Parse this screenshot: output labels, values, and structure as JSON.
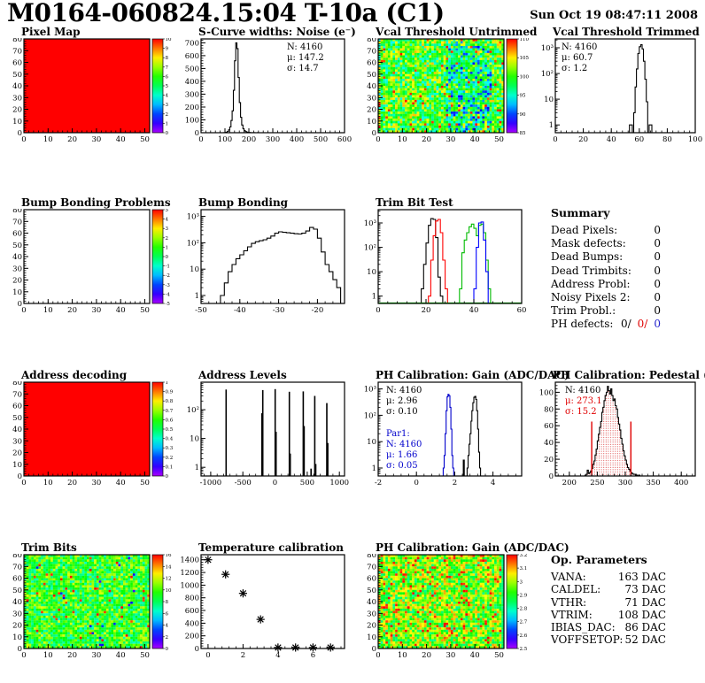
{
  "header": {
    "title": "M0164-060824.15:04 T-10a (C1)",
    "datetime": "Sun Oct 19 08:47:11 2008"
  },
  "summary": {
    "title": "Summary",
    "rows": [
      {
        "label": "Dead Pixels:",
        "value": "0"
      },
      {
        "label": "Mask defects:",
        "value": "0"
      },
      {
        "label": "Dead Bumps:",
        "value": "0"
      },
      {
        "label": "Dead Trimbits:",
        "value": "0"
      },
      {
        "label": "Address Probl:",
        "value": "0"
      },
      {
        "label": "Noisy Pixels 2:",
        "value": "0"
      },
      {
        "label": "Trim Probl.:",
        "value": "0"
      }
    ],
    "ph_row": {
      "label": "PH defects:",
      "parts": [
        {
          "text": "0/",
          "color": "#000000"
        },
        {
          "text": "0/",
          "color": "#e00000"
        },
        {
          "text": "0",
          "color": "#2222cc"
        }
      ]
    }
  },
  "op_parameters": {
    "title": "Op. Parameters",
    "rows": [
      {
        "label": "VANA:",
        "value": "163 DAC"
      },
      {
        "label": "CALDEL:",
        "value": "73 DAC"
      },
      {
        "label": "VTHR:",
        "value": "71 DAC"
      },
      {
        "label": "VTRIM:",
        "value": "108 DAC"
      },
      {
        "label": "IBIAS_DAC:",
        "value": "86 DAC"
      },
      {
        "label": "VOFFSETOP:",
        "value": "52 DAC"
      }
    ]
  },
  "chart_data": [
    {
      "title": "Pixel Map",
      "type": "heatmap",
      "fill": "uniform",
      "uniform_t": 1,
      "x_range": [
        0,
        52
      ],
      "x_ticks": [
        0,
        10,
        20,
        30,
        40,
        50
      ],
      "y_range": [
        0,
        80
      ],
      "y_ticks": [
        0,
        10,
        20,
        30,
        40,
        50,
        60,
        70,
        80
      ],
      "nx": 52,
      "ny": 40,
      "colorbar": {
        "z_range": [
          0,
          10
        ],
        "labels": [
          "10",
          "9",
          "8",
          "7",
          "6",
          "5",
          "4",
          "3",
          "2",
          "1",
          "0"
        ]
      }
    },
    {
      "title": "S-Curve widths: Noise (e⁻)",
      "type": "hist",
      "x_range": [
        0,
        600
      ],
      "x_ticks": [
        0,
        100,
        200,
        300,
        400,
        500,
        600
      ],
      "y_range": [
        0,
        730
      ],
      "y_ticks": [
        0,
        100,
        200,
        300,
        400,
        500,
        600,
        700
      ],
      "series": [
        {
          "color": "#000000",
          "start": 95,
          "bin_width": 5,
          "values": [
            1,
            2,
            4,
            10,
            22,
            45,
            95,
            170,
            330,
            560,
            700,
            655,
            430,
            235,
            120,
            60,
            30,
            16,
            9,
            5,
            3,
            2,
            1,
            1,
            0,
            1,
            0,
            0,
            1
          ]
        }
      ],
      "stats_blocks": [
        {
          "x": 124,
          "y": 13,
          "anchor": "start",
          "lines": [
            {
              "text": "N: 4160",
              "color": "#000000"
            },
            {
              "text": "μ: 147.2",
              "color": "#000000"
            },
            {
              "text": "σ: 14.7",
              "color": "#000000"
            }
          ]
        }
      ]
    },
    {
      "title": "Vcal Threshold Untrimmed",
      "type": "heatmap",
      "fill": "noise",
      "base": 0.6,
      "spread": 0.24,
      "hot_frac": 0.03,
      "seed": 7,
      "band": {
        "x0": 28,
        "x1": 46,
        "delta": -0.22,
        "prob": 0.5
      },
      "x_range": [
        0,
        52
      ],
      "x_ticks": [
        0,
        10,
        20,
        30,
        40,
        50
      ],
      "y_range": [
        0,
        80
      ],
      "y_ticks": [
        0,
        10,
        20,
        30,
        40,
        50,
        60,
        70,
        80
      ],
      "nx": 52,
      "ny": 40,
      "colorbar": {
        "z_range": [
          85,
          112
        ],
        "labels": [
          "110",
          "105",
          "100",
          "95",
          "90",
          "85"
        ]
      }
    },
    {
      "title": "Vcal Threshold Trimmed",
      "type": "hist",
      "log_y": true,
      "x_range": [
        0,
        100
      ],
      "x_ticks": [
        0,
        20,
        40,
        60,
        80,
        100
      ],
      "y_range": [
        0.5,
        2200
      ],
      "y_tick_labels": [
        "1",
        "10",
        "10²",
        "10³"
      ],
      "series": [
        {
          "color": "#000000",
          "start": 53,
          "bin_width": 1,
          "values": [
            1,
            1,
            0,
            3,
            30,
            150,
            600,
            1100,
            1300,
            900,
            300,
            60,
            8,
            0,
            1,
            1
          ]
        }
      ],
      "stats_blocks": [
        {
          "x": 34,
          "y": 13,
          "anchor": "start",
          "lines": [
            {
              "text": "N: 4160",
              "color": "#000000"
            },
            {
              "text": "μ: 60.7",
              "color": "#000000"
            },
            {
              "text": "σ:  1.2",
              "color": "#000000"
            }
          ]
        }
      ]
    },
    {
      "title": "Bump Bonding Problems",
      "type": "heatmap",
      "fill": "empty",
      "x_range": [
        0,
        52
      ],
      "x_ticks": [
        0,
        10,
        20,
        30,
        40,
        50
      ],
      "y_range": [
        0,
        80
      ],
      "y_ticks": [
        0,
        10,
        20,
        30,
        40,
        50,
        60,
        70,
        80
      ],
      "nx": 52,
      "ny": 40,
      "colorbar": {
        "z_range": [
          -5,
          5
        ],
        "labels": [
          "5",
          "4",
          "3",
          "2",
          "1",
          "0",
          "-1",
          "-2",
          "-3",
          "-4",
          "-5"
        ]
      }
    },
    {
      "title": "Bump Bonding",
      "type": "hist",
      "log_y": true,
      "x_range": [
        -50,
        -13
      ],
      "x_ticks": [
        -50,
        -40,
        -30,
        -20
      ],
      "y_range": [
        0.5,
        1800
      ],
      "y_tick_labels": [
        "1",
        "10",
        "10²",
        "10³"
      ],
      "series": [
        {
          "color": "#000000",
          "start": -45,
          "bin_width": 1,
          "values": [
            1,
            3,
            8,
            15,
            25,
            35,
            50,
            70,
            95,
            110,
            120,
            130,
            150,
            180,
            230,
            260,
            250,
            240,
            230,
            220,
            215,
            230,
            280,
            380,
            330,
            150,
            45,
            15,
            8,
            4,
            2
          ]
        }
      ]
    },
    {
      "title": "Trim Bit Test",
      "type": "hist",
      "log_y": true,
      "x_range": [
        0,
        60
      ],
      "x_ticks": [
        0,
        20,
        40,
        60
      ],
      "y_range": [
        0.5,
        3500
      ],
      "y_tick_labels": [
        "1",
        "10",
        "10²",
        "10³"
      ],
      "series": [
        {
          "color": "#000000",
          "start": 18,
          "bin_width": 1,
          "values": [
            2,
            20,
            150,
            800,
            1500,
            1400,
            250,
            6,
            1
          ]
        },
        {
          "color": "#ff0000",
          "start": 21,
          "bin_width": 1,
          "values": [
            1,
            30,
            300,
            1200,
            1400,
            400,
            30,
            2
          ]
        },
        {
          "color": "#00bb00",
          "start": 34,
          "bin_width": 1,
          "baseline_full": true,
          "values": [
            2,
            60,
            200,
            400,
            700,
            900,
            600,
            300,
            800,
            900,
            400,
            30,
            2
          ]
        },
        {
          "color": "#0000ff",
          "start": 40,
          "bin_width": 1,
          "values": [
            2,
            100,
            1000,
            1100,
            200,
            10
          ]
        }
      ]
    },
    {
      "title": "Address decoding",
      "type": "heatmap",
      "fill": "uniform",
      "uniform_t": 1,
      "x_range": [
        0,
        52
      ],
      "x_ticks": [
        0,
        10,
        20,
        30,
        40,
        50
      ],
      "y_range": [
        0,
        80
      ],
      "y_ticks": [
        0,
        10,
        20,
        30,
        40,
        50,
        60,
        70,
        80
      ],
      "nx": 52,
      "ny": 40,
      "colorbar": {
        "z_range": [
          0,
          1
        ],
        "labels": [
          "1",
          "0.9",
          "0.8",
          "0.7",
          "0.6",
          "0.5",
          "0.4",
          "0.3",
          "0.2",
          "0.1",
          "0"
        ]
      }
    },
    {
      "title": "Address Levels",
      "type": "spikes",
      "log_y": true,
      "x_range": [
        -1150,
        1080
      ],
      "x_ticks": [
        -1000,
        -500,
        0,
        500,
        1000
      ],
      "y_range": [
        0.5,
        900
      ],
      "y_tick_labels": [
        "1",
        "10",
        "10²"
      ],
      "spikes": [
        [
          -760,
          500
        ],
        [
          -205,
          75
        ],
        [
          -190,
          480
        ],
        [
          2,
          520
        ],
        [
          16,
          17
        ],
        [
          222,
          420
        ],
        [
          236,
          3
        ],
        [
          438,
          430
        ],
        [
          452,
          27
        ],
        [
          560,
          0.9
        ],
        [
          618,
          300
        ],
        [
          632,
          1.3
        ],
        [
          805,
          170
        ],
        [
          820,
          7
        ]
      ]
    },
    {
      "title": "PH Calibration: Gain (ADC/DAC)",
      "type": "hist",
      "log_y": true,
      "x_range": [
        -2,
        5.5
      ],
      "x_ticks": [
        -2,
        0,
        2,
        4
      ],
      "y_range": [
        0.5,
        1800
      ],
      "y_tick_labels": [
        "1",
        "10",
        "10²",
        "10³"
      ],
      "series": [
        {
          "color": "#0000cc",
          "start": 1.4,
          "bin_width": 0.05,
          "values": [
            1,
            3,
            20,
            150,
            500,
            620,
            550,
            200,
            30,
            3,
            1
          ]
        },
        {
          "color": "#000000",
          "start": 2.45,
          "bin_width": 0.05,
          "values": [
            2,
            0,
            0,
            0,
            1,
            3,
            8,
            20,
            60,
            150,
            300,
            480,
            520,
            400,
            150,
            30,
            4,
            1
          ]
        }
      ],
      "stats_blocks": [
        {
          "x": 36,
          "y": 13,
          "anchor": "start",
          "lines": [
            {
              "text": "N: 4160",
              "color": "#000000"
            },
            {
              "text": "μ: 2.96",
              "color": "#000000"
            },
            {
              "text": "σ: 0.10",
              "color": "#000000"
            }
          ]
        },
        {
          "x": 36,
          "y": 62,
          "anchor": "start",
          "lines": [
            {
              "text": "Par1:",
              "color": "#0000cc"
            },
            {
              "text": "N: 4160",
              "color": "#0000cc"
            },
            {
              "text": "μ: 1.66",
              "color": "#0000cc"
            },
            {
              "text": "σ: 0.05",
              "color": "#0000cc"
            }
          ]
        }
      ]
    },
    {
      "title": "PH Calibration: Pedestal (DAC)",
      "type": "hist",
      "x_range": [
        175,
        425
      ],
      "x_ticks": [
        200,
        250,
        300,
        350,
        400
      ],
      "y_range": [
        0,
        112
      ],
      "y_ticks": [
        0,
        20,
        40,
        60,
        80,
        100
      ],
      "series": [
        {
          "color": "#000000",
          "start": 228,
          "bin_width": 2,
          "fill_dots": "#d00000",
          "values": [
            1,
            2,
            7,
            3,
            4,
            6,
            9,
            14,
            18,
            25,
            32,
            42,
            50,
            58,
            65,
            76,
            82,
            90,
            96,
            100,
            107,
            102,
            98,
            104,
            96,
            90,
            92,
            84,
            80,
            70,
            62,
            55,
            45,
            38,
            30,
            24,
            19,
            14,
            10,
            8,
            6,
            4,
            3,
            2,
            2,
            1,
            1,
            0,
            1
          ]
        }
      ],
      "vlines": [
        {
          "x": 240,
          "y": 65,
          "color": "#e00000"
        },
        {
          "x": 310,
          "y": 65,
          "color": "#e00000"
        }
      ],
      "stats_blocks": [
        {
          "x": 38,
          "y": 13,
          "anchor": "start",
          "lines": [
            {
              "text": "N: 4160",
              "color": "#000000"
            },
            {
              "text": "μ: 273.1",
              "color": "#e00000"
            },
            {
              "text": "σ: 15.2",
              "color": "#e00000"
            }
          ]
        }
      ]
    },
    {
      "title": "Trim Bits",
      "type": "heatmap",
      "fill": "noise",
      "base": 0.58,
      "spread": 0.18,
      "hot_frac": 0.02,
      "cold_frac": 0.012,
      "seed": 21,
      "x_range": [
        0,
        52
      ],
      "x_ticks": [
        0,
        10,
        20,
        30,
        40,
        50
      ],
      "y_range": [
        0,
        80
      ],
      "y_ticks": [
        0,
        10,
        20,
        30,
        40,
        50,
        60,
        70,
        80
      ],
      "nx": 52,
      "ny": 40,
      "colorbar": {
        "z_range": [
          0,
          16
        ],
        "labels": [
          "16",
          "14",
          "12",
          "10",
          "8",
          "6",
          "4",
          "2",
          "0"
        ]
      }
    },
    {
      "title": "Temperature calibration",
      "type": "scatter",
      "x_range": [
        -0.4,
        7.8
      ],
      "x_ticks": [
        0,
        2,
        4,
        6
      ],
      "y_range": [
        0,
        1480
      ],
      "y_ticks": [
        0,
        200,
        400,
        600,
        800,
        1000,
        1200,
        1400
      ],
      "points": [
        [
          0,
          1400
        ],
        [
          1,
          1170
        ],
        [
          2,
          870
        ],
        [
          3,
          460
        ],
        [
          4,
          15
        ],
        [
          5,
          15
        ],
        [
          6,
          15
        ],
        [
          7,
          15
        ]
      ]
    },
    {
      "title": "PH Calibration: Gain (ADC/DAC)",
      "type": "heatmap",
      "fill": "noise",
      "base": 0.66,
      "spread": 0.22,
      "hot_frac": 0.07,
      "seed": 33,
      "edge_cols": 1,
      "edge_t": 0.48,
      "x_range": [
        0,
        52
      ],
      "x_ticks": [
        0,
        10,
        20,
        30,
        40,
        50
      ],
      "y_range": [
        0,
        80
      ],
      "y_ticks": [
        0,
        10,
        20,
        30,
        40,
        50,
        60,
        70,
        80
      ],
      "nx": 52,
      "ny": 40,
      "colorbar": {
        "z_range": [
          2.45,
          3.25
        ],
        "labels": [
          "3.2",
          "3.1",
          "3",
          "2.9",
          "2.8",
          "2.7",
          "2.6",
          "2.5"
        ]
      }
    }
  ]
}
